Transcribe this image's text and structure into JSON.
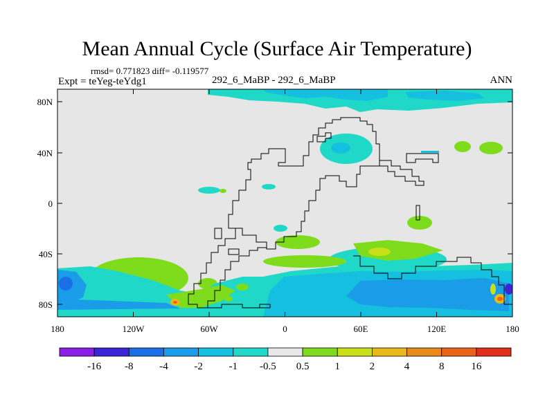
{
  "chart_data": {
    "type": "heatmap",
    "title": "Mean Annual Cycle (Surface Air Temperature)",
    "stats": "rmsd= 0.771823 diff= -0.119577",
    "experiment": "Expt = teYeg-teYdg1",
    "center_label": "292_6_MaBP - 292_6_MaBP",
    "season": "ANN",
    "x_tick_labels": [
      "180",
      "120W",
      "60W",
      "0",
      "60E",
      "120E",
      "180"
    ],
    "y_tick_labels": [
      "80N",
      "40N",
      "0",
      "40S",
      "80S"
    ],
    "xlim": [
      -180,
      180
    ],
    "ylim": [
      -90,
      90
    ],
    "colorbar": {
      "labels": [
        "-16",
        "-8",
        "-4",
        "-2",
        "-1",
        "-0.5",
        "0.5",
        "1",
        "2",
        "4",
        "8",
        "16"
      ],
      "colors": [
        "#8a1fe6",
        "#3a26d6",
        "#1a6ee6",
        "#1b9ce8",
        "#14bfe0",
        "#20d8c8",
        "#e8e8e8",
        "#7fdc1c",
        "#c8e01a",
        "#e8b81a",
        "#e88a1a",
        "#e8641a",
        "#e0301a"
      ]
    },
    "colors": {
      "background_field": "#e6e6e6",
      "warm_light": "#7fdc1c",
      "warm_mid": "#c8e01a",
      "cool_light": "#20d8c8",
      "cool_mid": "#14bfe0",
      "cool_strong": "#1b9ce8",
      "cool_deep": "#1a6ee6",
      "hot": "#e8641a"
    }
  }
}
